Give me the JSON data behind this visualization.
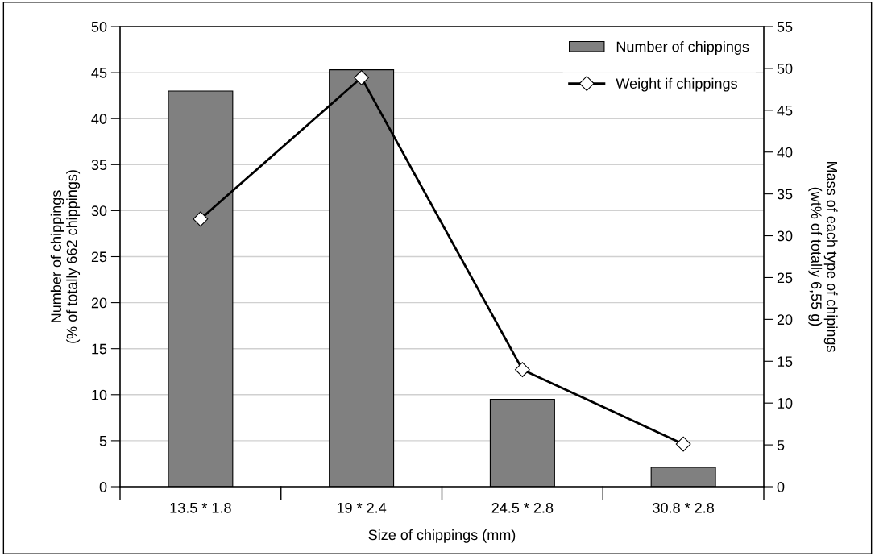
{
  "chart_data": {
    "type": "bar",
    "xlabel": "Size of chippings (mm)",
    "ylabel": "Number of chippings\n(% of totally 662 chippings)",
    "y2label": "Mass of each type of chipings\n(wt% of totally 6,55 g)",
    "categories": [
      "13.5 * 1.8",
      "19 * 2.4",
      "24.5 * 2.8",
      "30.8 * 2.8"
    ],
    "series": [
      {
        "name": "Number of chippings",
        "color": "#808080",
        "values": [
          43.0,
          45.3,
          9.5,
          2.1
        ]
      },
      {
        "name": "Weight if chippings",
        "type": "line",
        "axis": "y2",
        "color": "#000000",
        "marker": "diamond",
        "values": [
          32.0,
          48.9,
          14.0,
          5.1
        ]
      }
    ],
    "ylim": [
      0,
      50
    ],
    "yticks": [
      0,
      5,
      10,
      15,
      20,
      25,
      30,
      35,
      40,
      45,
      50
    ],
    "y2lim": [
      0,
      55
    ],
    "y2ticks": [
      0,
      5,
      10,
      15,
      20,
      25,
      30,
      35,
      40,
      45,
      50,
      55
    ],
    "grid": "y",
    "legend": "top right"
  }
}
